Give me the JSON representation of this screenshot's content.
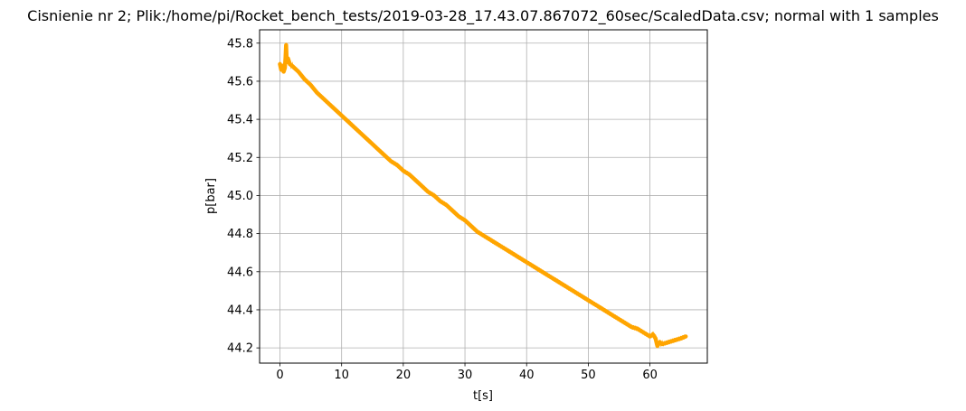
{
  "chart_data": {
    "type": "line",
    "title": "Cisnienie nr 2; Plik:/home/pi/Rocket_bench_tests/2019-03-28_17.43.07.867072_60sec/ScaledData.csv; normal with 1 samples",
    "xlabel": "t[s]",
    "ylabel": "p[bar]",
    "xlim": [
      -3.3,
      69.3
    ],
    "ylim": [
      44.12,
      45.87
    ],
    "grid": true,
    "x_ticks": [
      0,
      10,
      20,
      30,
      40,
      50,
      60
    ],
    "y_ticks": [
      44.2,
      44.4,
      44.6,
      44.8,
      45.0,
      45.2,
      45.4,
      45.6,
      45.8
    ],
    "x_tick_labels": [
      "0",
      "10",
      "20",
      "30",
      "40",
      "50",
      "60"
    ],
    "y_tick_labels": [
      "44.2",
      "44.4",
      "44.6",
      "44.8",
      "45.0",
      "45.2",
      "45.4",
      "45.6",
      "45.8"
    ],
    "series": [
      {
        "color": "#ffa500",
        "x": [
          0.0,
          0.2,
          0.4,
          0.6,
          0.8,
          0.9,
          1.0,
          1.1,
          1.3,
          1.6,
          2,
          3,
          4,
          5,
          6,
          7,
          8,
          9,
          10,
          11,
          12,
          13,
          14,
          15,
          16,
          17,
          18,
          19,
          20,
          21,
          22,
          23,
          24,
          25,
          26,
          27,
          28,
          29,
          30,
          31,
          32,
          33,
          34,
          35,
          36,
          37,
          38,
          39,
          40,
          41,
          42,
          43,
          44,
          45,
          46,
          47,
          48,
          49,
          50,
          51,
          52,
          53,
          54,
          55,
          56,
          57,
          58,
          59,
          60,
          60.5,
          60.9,
          61.2,
          61.6,
          62,
          63,
          64,
          65,
          65.8
        ],
        "y": [
          45.69,
          45.66,
          45.68,
          45.65,
          45.67,
          45.72,
          45.79,
          45.7,
          45.72,
          45.69,
          45.68,
          45.65,
          45.61,
          45.58,
          45.54,
          45.51,
          45.48,
          45.45,
          45.42,
          45.39,
          45.36,
          45.33,
          45.3,
          45.27,
          45.24,
          45.21,
          45.18,
          45.16,
          45.13,
          45.11,
          45.08,
          45.05,
          45.02,
          45.0,
          44.97,
          44.95,
          44.92,
          44.89,
          44.87,
          44.84,
          44.81,
          44.79,
          44.77,
          44.75,
          44.73,
          44.71,
          44.69,
          44.67,
          44.65,
          44.63,
          44.61,
          44.59,
          44.57,
          44.55,
          44.53,
          44.51,
          44.49,
          44.47,
          44.45,
          44.43,
          44.41,
          44.39,
          44.37,
          44.35,
          44.33,
          44.31,
          44.3,
          44.28,
          44.26,
          44.27,
          44.25,
          44.21,
          44.23,
          44.22,
          44.23,
          44.24,
          44.25,
          44.26
        ]
      }
    ]
  }
}
